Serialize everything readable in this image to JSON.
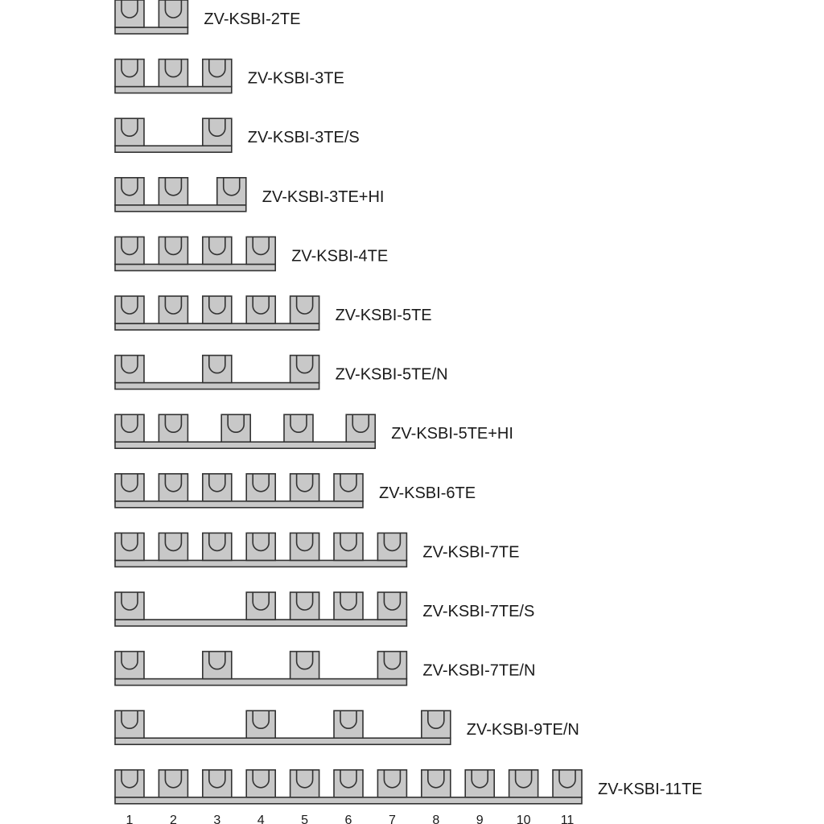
{
  "colors": {
    "part_fill": "#c8c8c8",
    "outline": "#333333",
    "text": "#1a1a1a"
  },
  "rows": [
    {
      "label": "ZV-KSBI-2TE",
      "pins": [
        1,
        2
      ],
      "length": 2
    },
    {
      "label": "ZV-KSBI-3TE",
      "pins": [
        1,
        2,
        3
      ],
      "length": 3
    },
    {
      "label": "ZV-KSBI-3TE/S",
      "pins": [
        1,
        3
      ],
      "length": 3
    },
    {
      "label": "ZV-KSBI-3TE+HI",
      "pins": [
        1,
        2,
        3.33
      ],
      "length": 3.33
    },
    {
      "label": "ZV-KSBI-4TE",
      "pins": [
        1,
        2,
        3,
        4
      ],
      "length": 4
    },
    {
      "label": "ZV-KSBI-5TE",
      "pins": [
        1,
        2,
        3,
        4,
        5
      ],
      "length": 5
    },
    {
      "label": "ZV-KSBI-5TE/N",
      "pins": [
        1,
        3,
        5
      ],
      "length": 5
    },
    {
      "label": "ZV-KSBI-5TE+HI",
      "pins": [
        1,
        2,
        3.43,
        4.86,
        6.28
      ],
      "length": 6.28
    },
    {
      "label": "ZV-KSBI-6TE",
      "pins": [
        1,
        2,
        3,
        4,
        5,
        6
      ],
      "length": 6
    },
    {
      "label": "ZV-KSBI-7TE",
      "pins": [
        1,
        2,
        3,
        4,
        5,
        6,
        7
      ],
      "length": 7
    },
    {
      "label": "ZV-KSBI-7TE/S",
      "pins": [
        1,
        4,
        5,
        6,
        7
      ],
      "length": 7
    },
    {
      "label": "ZV-KSBI-7TE/N",
      "pins": [
        1,
        3,
        5,
        7
      ],
      "length": 7
    },
    {
      "label": "ZV-KSBI-9TE/N",
      "pins": [
        1,
        4,
        6,
        8
      ],
      "length": 8
    },
    {
      "label": "ZV-KSBI-11TE",
      "pins": [
        1,
        2,
        3,
        4,
        5,
        6,
        7,
        8,
        9,
        10,
        11
      ],
      "length": 11
    }
  ],
  "position_numbers": [
    "1",
    "2",
    "3",
    "4",
    "5",
    "6",
    "7",
    "8",
    "9",
    "10",
    "11"
  ]
}
